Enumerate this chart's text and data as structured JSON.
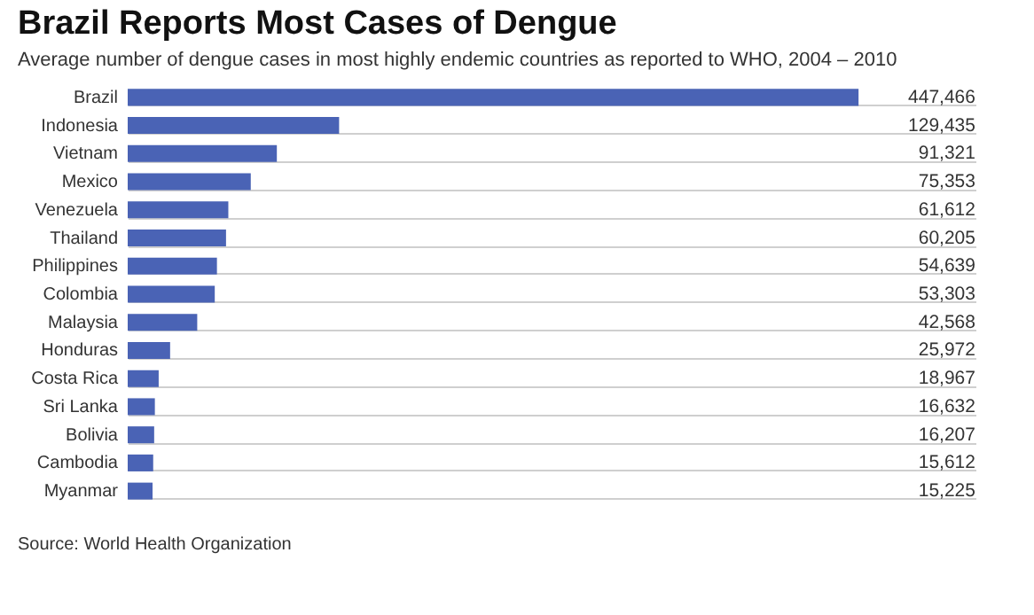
{
  "chart_data": {
    "type": "bar",
    "orientation": "horizontal",
    "title": "Brazil Reports Most Cases of Dengue",
    "subtitle": "Average number of dengue cases in most highly endemic countries as reported to WHO, 2004 – 2010",
    "categories": [
      "Brazil",
      "Indonesia",
      "Vietnam",
      "Mexico",
      "Venezuela",
      "Thailand",
      "Philippines",
      "Colombia",
      "Malaysia",
      "Honduras",
      "Costa Rica",
      "Sri Lanka",
      "Bolivia",
      "Cambodia",
      "Myanmar"
    ],
    "values": [
      447466,
      129435,
      91321,
      75353,
      61612,
      60205,
      54639,
      53303,
      42568,
      25972,
      18967,
      16632,
      16207,
      15612,
      15225
    ],
    "value_labels": [
      "447,466",
      "129,435",
      "91,321",
      "75,353",
      "61,612",
      "60,205",
      "54,639",
      "53,303",
      "42,568",
      "25,972",
      "18,967",
      "16,632",
      "16,207",
      "15,612",
      "15,225"
    ],
    "color": "#4a63b5",
    "grid": "y",
    "annotations": [
      "Source: World Health Organization"
    ]
  }
}
